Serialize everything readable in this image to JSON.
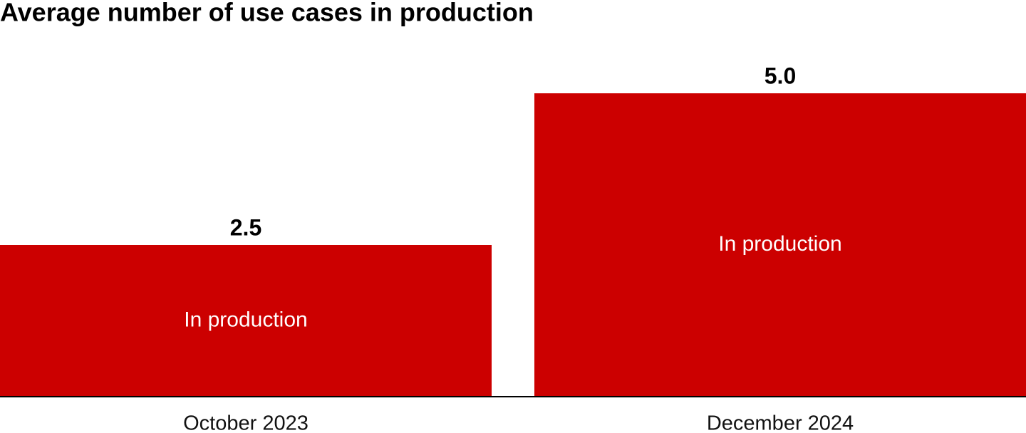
{
  "chart_data": {
    "type": "bar",
    "title": "Average number of use cases in production",
    "categories": [
      "October 2023",
      "December 2024"
    ],
    "series": [
      {
        "name": "In production",
        "color": "#cc0000",
        "values": [
          2.5,
          5.0
        ]
      }
    ],
    "value_labels": [
      "2.5",
      "5.0"
    ]
  }
}
